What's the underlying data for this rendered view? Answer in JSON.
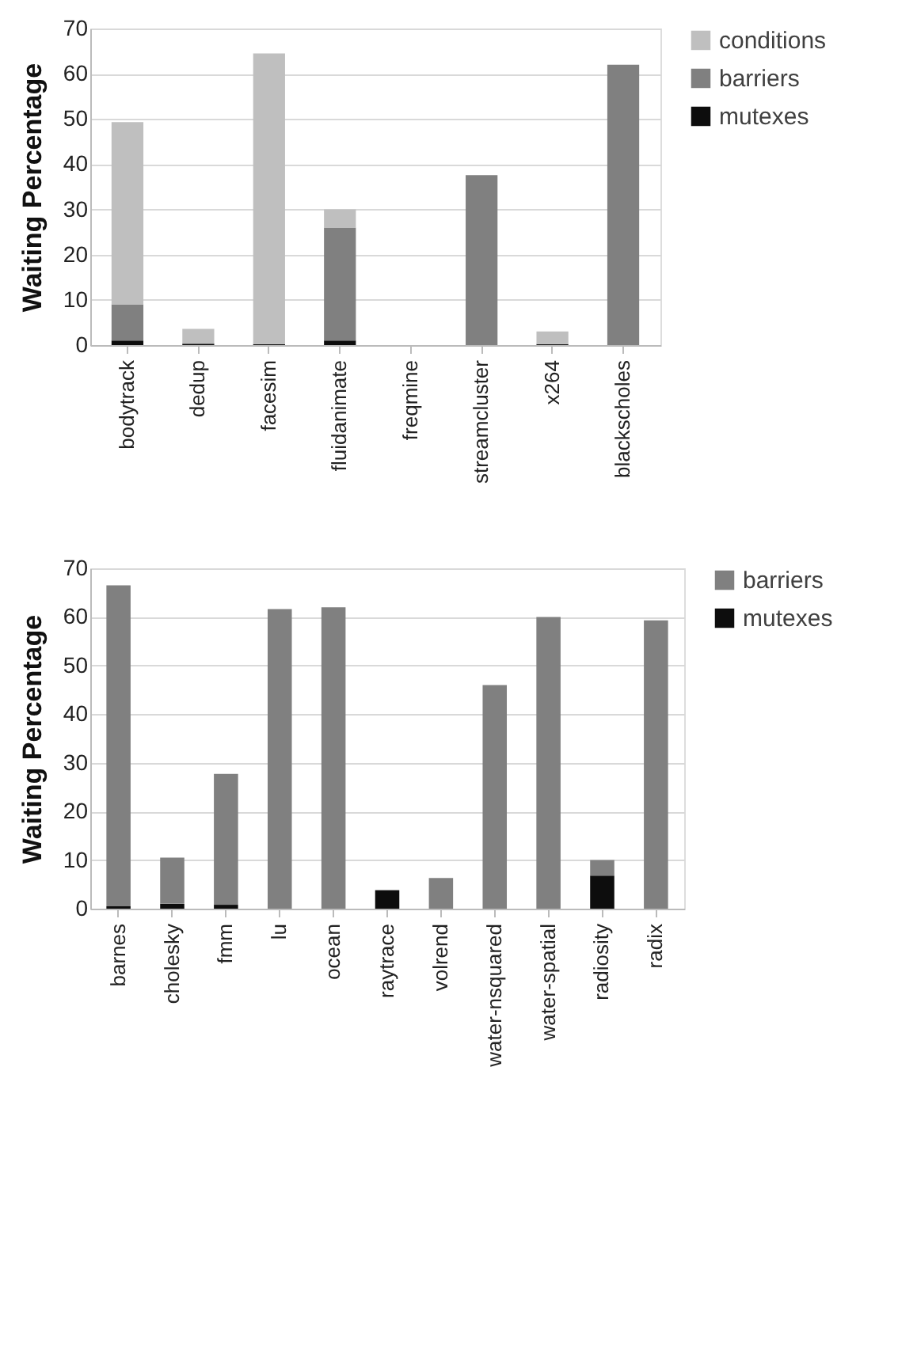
{
  "chart_data": [
    {
      "type": "bar",
      "stacked": true,
      "ylabel": "Waiting Percentage",
      "categories": [
        "bodytrack",
        "dedup",
        "facesim",
        "fluidanimate",
        "freqmine",
        "streamcluster",
        "x264",
        "blackscholes"
      ],
      "series": [
        {
          "name": "mutexes",
          "color": "#0d0d0d",
          "values": [
            1,
            0.3,
            0.2,
            1,
            0,
            0,
            0.2,
            0
          ]
        },
        {
          "name": "barriers",
          "color": "#808080",
          "values": [
            8,
            0,
            0,
            25,
            0,
            37.6,
            0,
            62
          ]
        },
        {
          "name": "conditions",
          "color": "#bfbfbf",
          "values": [
            40.3,
            3.3,
            64.3,
            4,
            0,
            0,
            2.8,
            0
          ]
        }
      ],
      "ylim": [
        0,
        70
      ],
      "yticks": [
        0,
        10,
        20,
        30,
        40,
        50,
        60,
        70
      ],
      "grid": "y",
      "legend": "right"
    },
    {
      "type": "bar",
      "stacked": true,
      "ylabel": "Waiting Percentage",
      "categories": [
        "barnes",
        "cholesky",
        "fmm",
        "lu",
        "ocean",
        "raytrace",
        "volrend",
        "water-nsquared",
        "water-spatial",
        "radiosity",
        "radix"
      ],
      "series": [
        {
          "name": "mutexes",
          "color": "#0d0d0d",
          "values": [
            0.5,
            1,
            0.8,
            0,
            0,
            3.8,
            0,
            0,
            0,
            6.8,
            0
          ]
        },
        {
          "name": "barriers",
          "color": "#808080",
          "values": [
            66,
            9.5,
            26.9,
            61.6,
            62,
            0,
            6.3,
            46,
            60,
            3.2,
            59.3
          ]
        }
      ],
      "ylim": [
        0,
        70
      ],
      "yticks": [
        0,
        10,
        20,
        30,
        40,
        50,
        60,
        70
      ],
      "grid": "y",
      "legend": "right"
    }
  ]
}
